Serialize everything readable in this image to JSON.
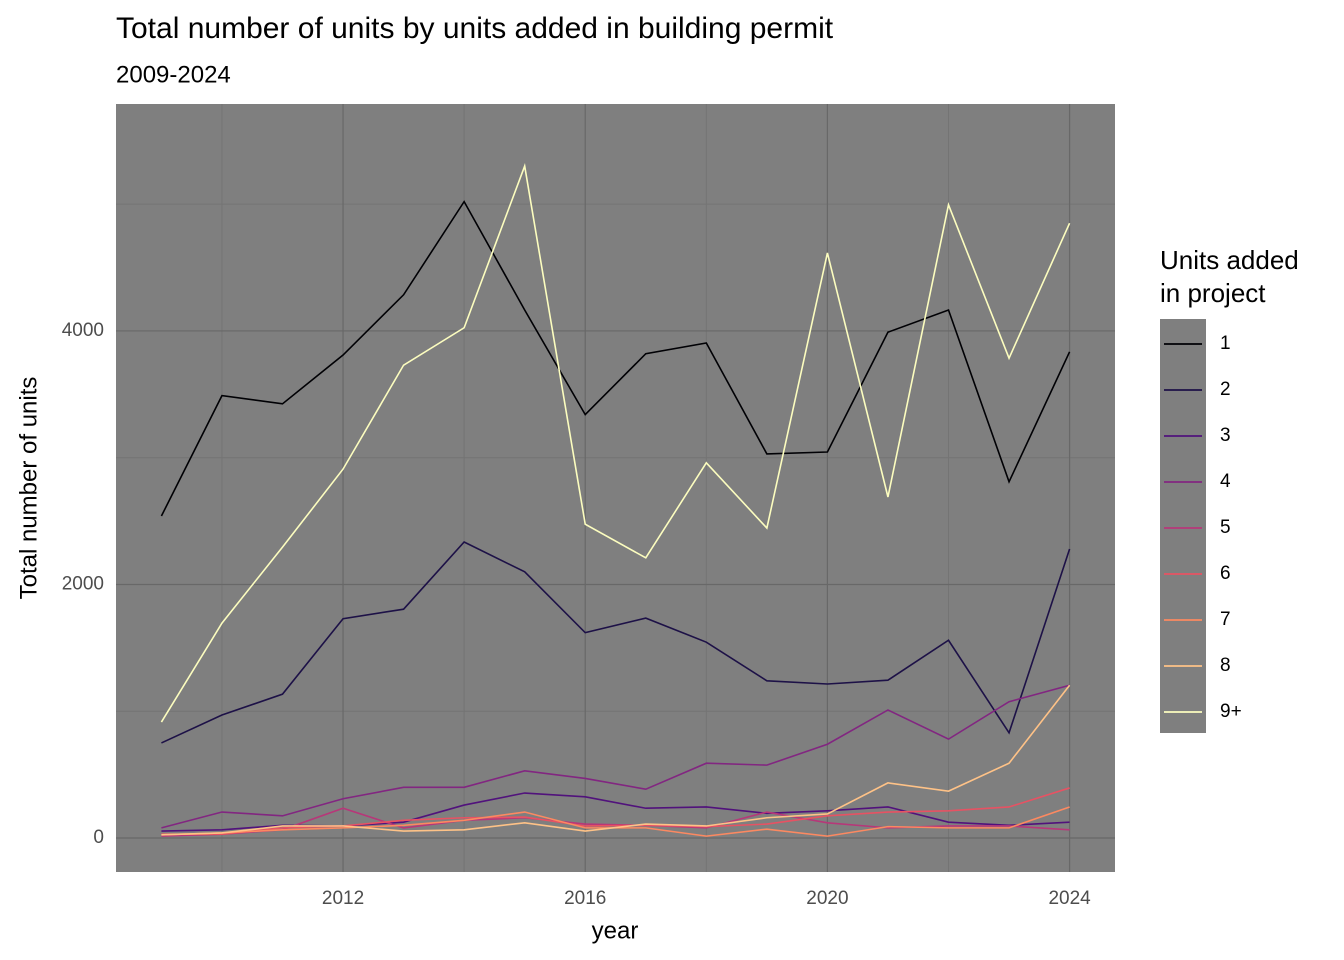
{
  "chart_data": {
    "type": "line",
    "title": "Total number of units by units added in building permit",
    "subtitle": "2009-2024",
    "x_label": "year",
    "y_label": "Total number of units",
    "legend_title": "Units added in project",
    "legend": "right",
    "grid": true,
    "x": [
      2009,
      2010,
      2011,
      2012,
      2013,
      2014,
      2015,
      2016,
      2017,
      2018,
      2019,
      2020,
      2021,
      2022,
      2023,
      2024
    ],
    "xlim": [
      2008.25,
      2024.75
    ],
    "xticks": [
      2012,
      2016,
      2020,
      2024
    ],
    "ylim": [
      -268,
      5790
    ],
    "yticks": [
      0,
      2000,
      4000
    ],
    "series": [
      {
        "name": "1",
        "color": "#000004",
        "values": [
          2540,
          3490,
          3425,
          3810,
          4285,
          5020,
          4165,
          3340,
          3820,
          3905,
          3030,
          3045,
          3990,
          4165,
          2810,
          3835
        ]
      },
      {
        "name": "2",
        "color": "#1d1147",
        "values": [
          750,
          970,
          1135,
          1730,
          1805,
          2335,
          2100,
          1620,
          1735,
          1545,
          1240,
          1215,
          1245,
          1560,
          830,
          2280
        ]
      },
      {
        "name": "3",
        "color": "#51127c",
        "values": [
          55,
          65,
          100,
          95,
          125,
          260,
          355,
          325,
          235,
          245,
          195,
          215,
          245,
          125,
          100,
          125
        ]
      },
      {
        "name": "4",
        "color": "#822681",
        "values": [
          80,
          205,
          175,
          310,
          400,
          400,
          530,
          470,
          385,
          590,
          575,
          740,
          1010,
          780,
          1075,
          1205
        ]
      },
      {
        "name": "5",
        "color": "#b73779",
        "values": [
          15,
          30,
          65,
          235,
          80,
          140,
          160,
          110,
          100,
          80,
          205,
          120,
          80,
          95,
          95,
          65
        ]
      },
      {
        "name": "6",
        "color": "#e75263",
        "values": [
          30,
          30,
          80,
          95,
          140,
          160,
          165,
          95,
          100,
          90,
          110,
          175,
          205,
          215,
          245,
          395
        ]
      },
      {
        "name": "7",
        "color": "#fc8961",
        "values": [
          25,
          40,
          65,
          80,
          100,
          140,
          205,
          80,
          80,
          15,
          70,
          15,
          90,
          80,
          80,
          245
        ]
      },
      {
        "name": "8",
        "color": "#fec287",
        "values": [
          25,
          40,
          95,
          95,
          55,
          65,
          120,
          55,
          110,
          95,
          160,
          190,
          435,
          370,
          590,
          1205
        ]
      },
      {
        "name": "9+",
        "color": "#fcfdbf",
        "values": [
          915,
          1695,
          2295,
          2910,
          3730,
          4025,
          5300,
          2475,
          2210,
          2960,
          2445,
          4615,
          2690,
          4995,
          3785,
          4850
        ]
      }
    ]
  }
}
